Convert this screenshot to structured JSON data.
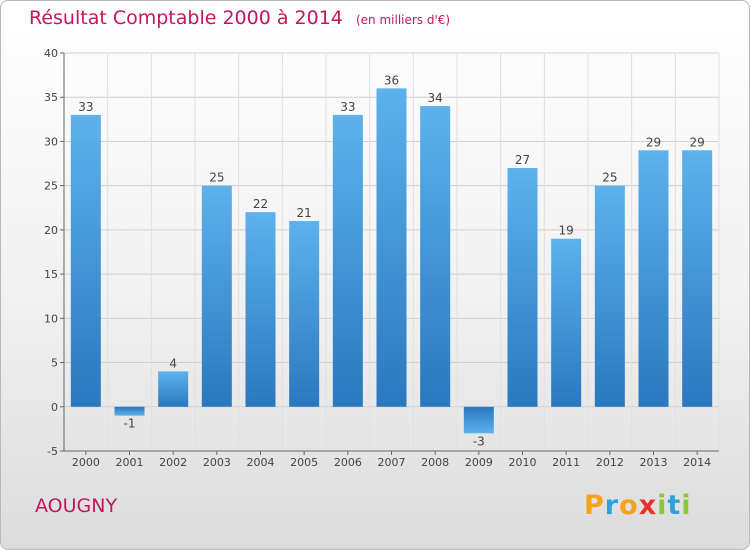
{
  "chart_data": {
    "type": "bar",
    "title": "Résultat Comptable 2000 à 2014",
    "subtitle": "(en milliers d'€)",
    "categories": [
      "2000",
      "2001",
      "2002",
      "2003",
      "2004",
      "2005",
      "2006",
      "2007",
      "2008",
      "2009",
      "2010",
      "2011",
      "2012",
      "2013",
      "2014"
    ],
    "values": [
      33,
      -1,
      4,
      25,
      22,
      21,
      33,
      36,
      34,
      -3,
      27,
      19,
      25,
      29,
      29
    ],
    "ylim": [
      -5,
      40
    ],
    "yticks": [
      -5,
      0,
      5,
      10,
      15,
      20,
      25,
      30,
      35,
      40
    ],
    "grid": true,
    "bar_color": "#3a8fd6",
    "xlabel": "",
    "ylabel": ""
  },
  "commune": "AOUGNY",
  "logo": {
    "letters": [
      "P",
      "r",
      "o",
      "x",
      "i",
      "t",
      "i"
    ],
    "colors": [
      "#f7a21b",
      "#2aa3dc",
      "#f7a21b",
      "#e5322d",
      "#8cc63f",
      "#2aa3dc",
      "#8cc63f"
    ]
  }
}
